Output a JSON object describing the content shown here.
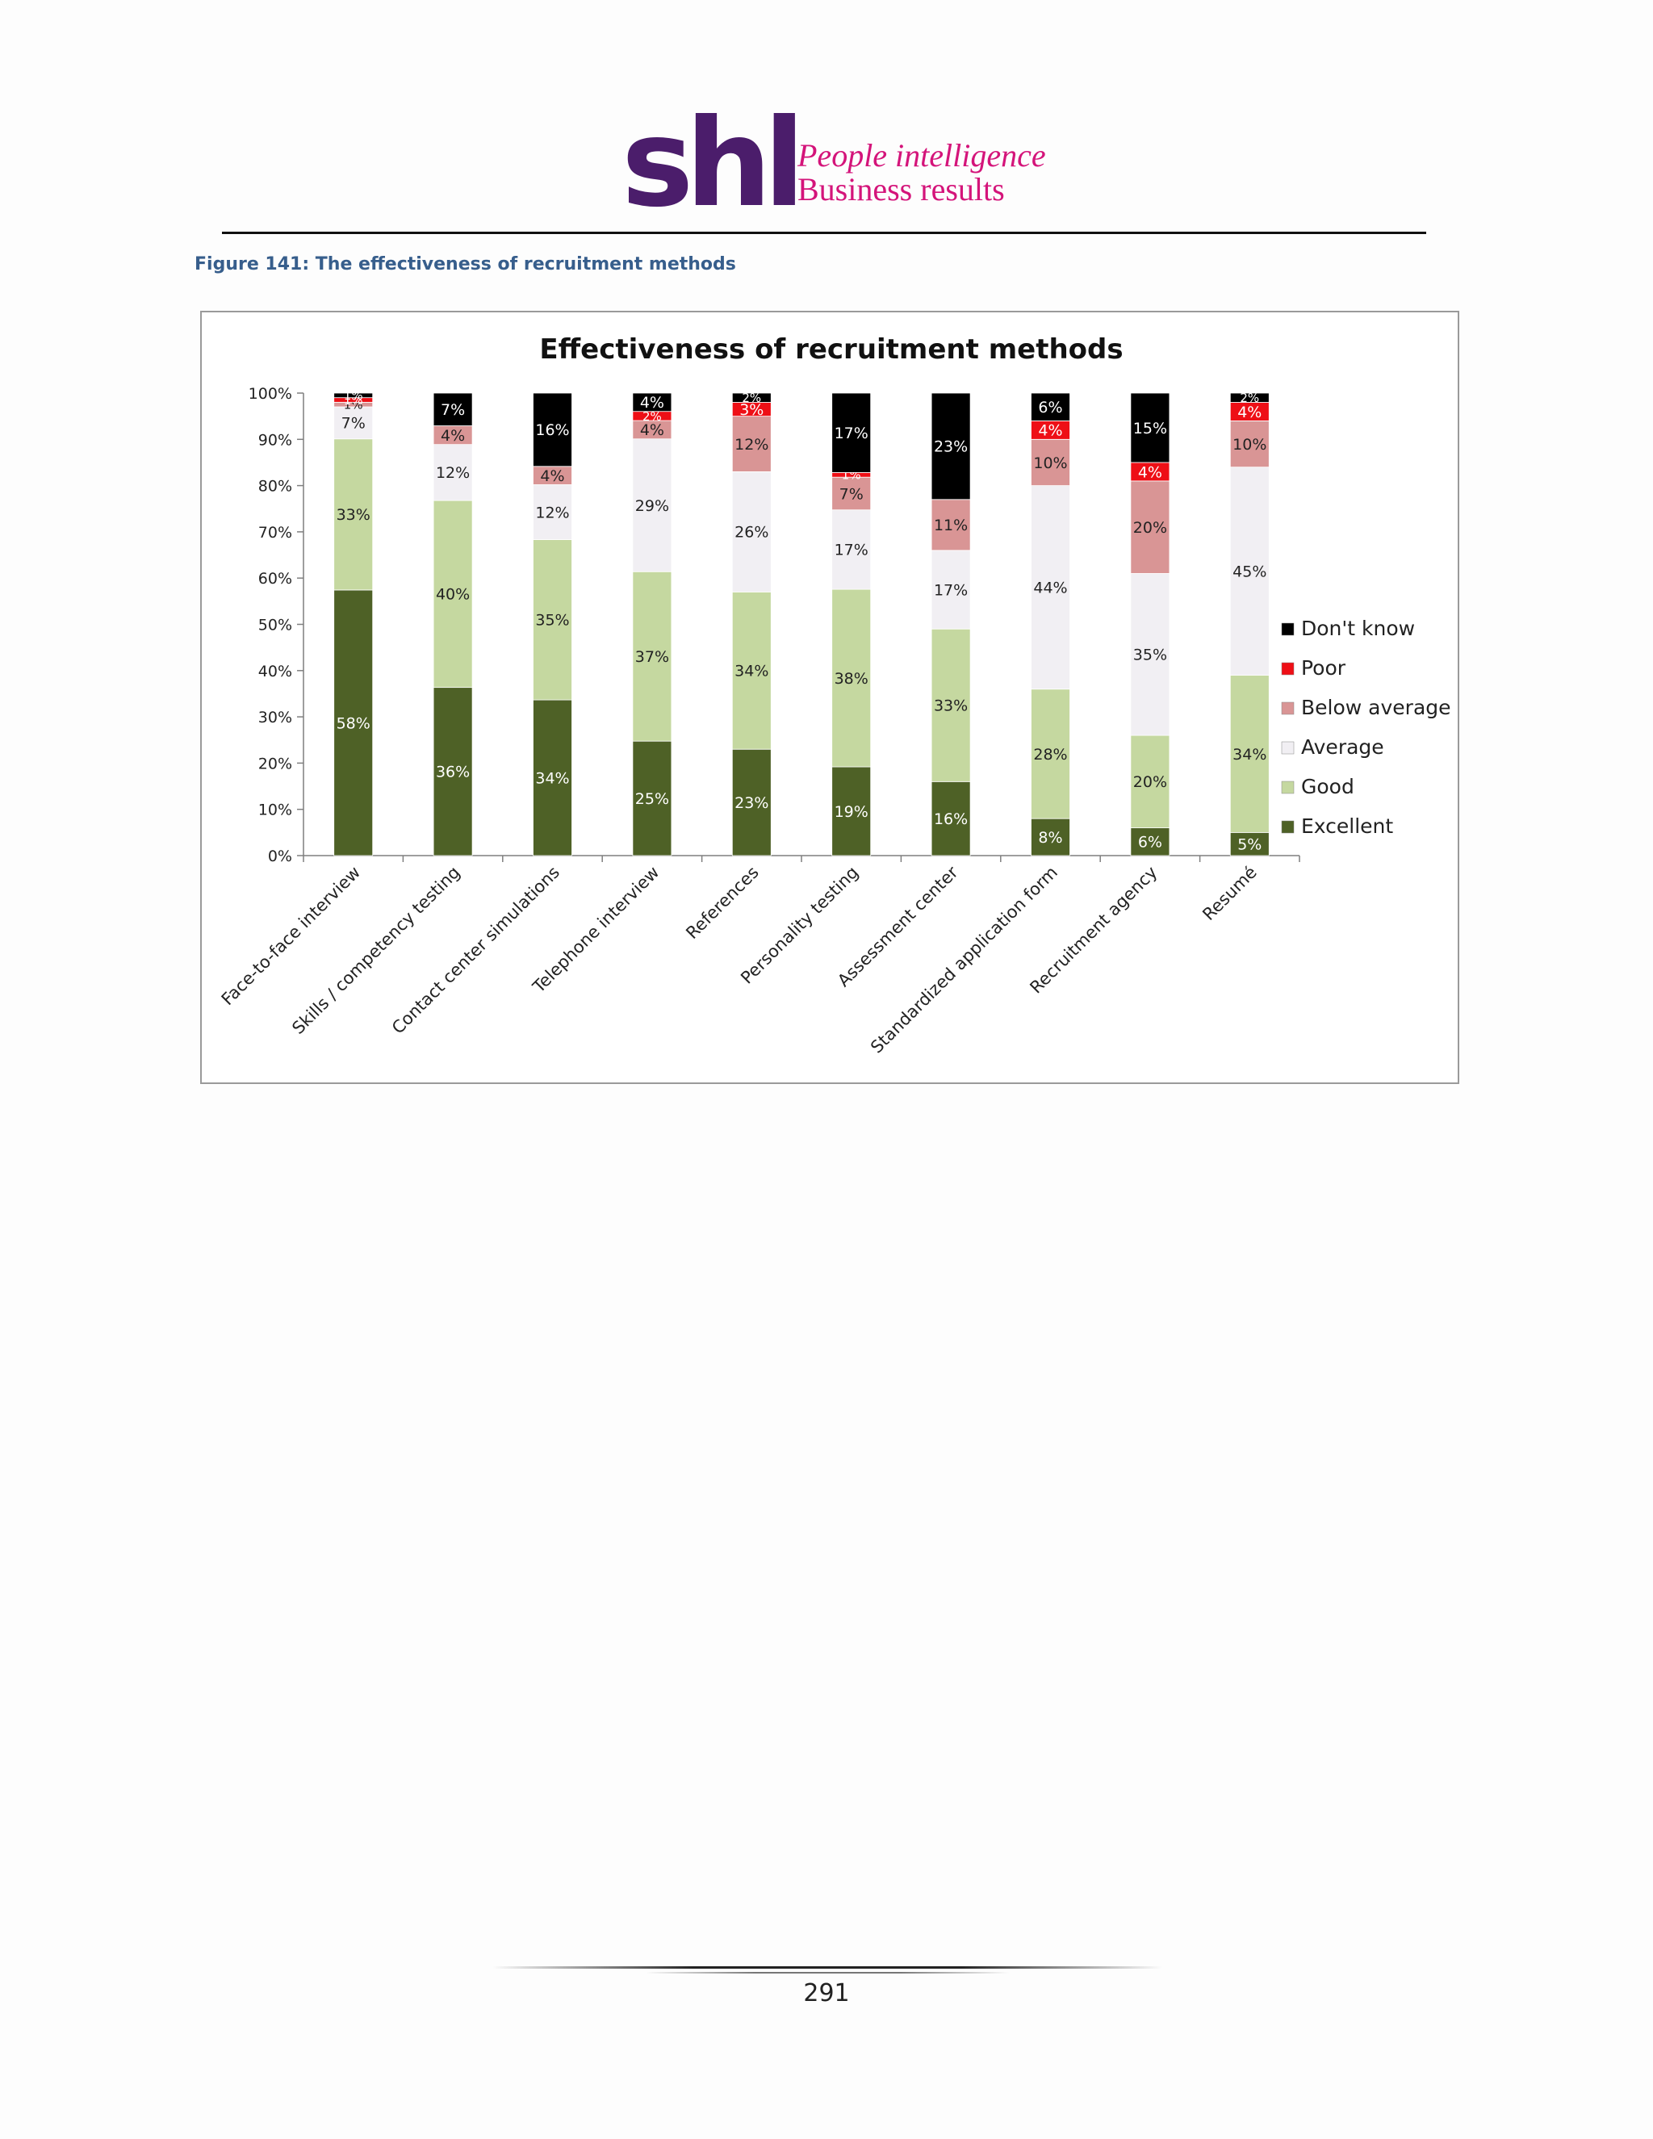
{
  "header": {
    "logo_text": "shl",
    "tagline_line1": "People intelligence",
    "tagline_line2": "Business results"
  },
  "figure_caption": "Figure 141: The effectiveness of recruitment methods",
  "page_number": "291",
  "colors": {
    "brand_purple": "#4b1d6b",
    "brand_magenta": "#d4147a",
    "caption_blue": "#375e8c",
    "excellent": "#4e6126",
    "good": "#c5d8a0",
    "average": "#f1eff3",
    "below_average": "#d99595",
    "poor": "#ee0f16",
    "dont_know": "#000000"
  },
  "chart_data": {
    "type": "bar",
    "stacked": true,
    "title": "Effectiveness of recruitment methods",
    "xlabel": "",
    "ylabel": "",
    "ylim": [
      0,
      100
    ],
    "yticks": [
      "0%",
      "10%",
      "20%",
      "30%",
      "40%",
      "50%",
      "60%",
      "70%",
      "80%",
      "90%",
      "100%"
    ],
    "legend_position": "right",
    "categories": [
      "Face-to-face interview",
      "Skills / competency testing",
      "Contact center simulations",
      "Telephone interview",
      "References",
      "Personality testing",
      "Assessment center",
      "Standardized application form",
      "Recruitment agency",
      "Resumé"
    ],
    "series": [
      {
        "name": "Excellent",
        "color": "#4e6126",
        "label_color": "#ffffff",
        "values": [
          58,
          36,
          34,
          25,
          23,
          19,
          16,
          8,
          6,
          5
        ]
      },
      {
        "name": "Good",
        "color": "#c5d8a0",
        "label_color": "#222222",
        "values": [
          33,
          40,
          35,
          37,
          34,
          38,
          33,
          28,
          20,
          34
        ]
      },
      {
        "name": "Average",
        "color": "#f1eff3",
        "label_color": "#222222",
        "values": [
          7,
          12,
          12,
          29,
          26,
          17,
          17,
          44,
          35,
          45
        ]
      },
      {
        "name": "Below average",
        "color": "#d99595",
        "label_color": "#222222",
        "values": [
          1,
          4,
          4,
          4,
          12,
          7,
          11,
          10,
          20,
          10
        ]
      },
      {
        "name": "Poor",
        "color": "#ee0f16",
        "label_color": "#ffffff",
        "values": [
          1,
          0,
          0,
          2,
          3,
          1,
          0,
          4,
          4,
          4
        ]
      },
      {
        "name": "Don't know",
        "color": "#000000",
        "label_color": "#ffffff",
        "values": [
          1,
          7,
          16,
          4,
          2,
          17,
          23,
          6,
          15,
          2
        ]
      }
    ]
  }
}
